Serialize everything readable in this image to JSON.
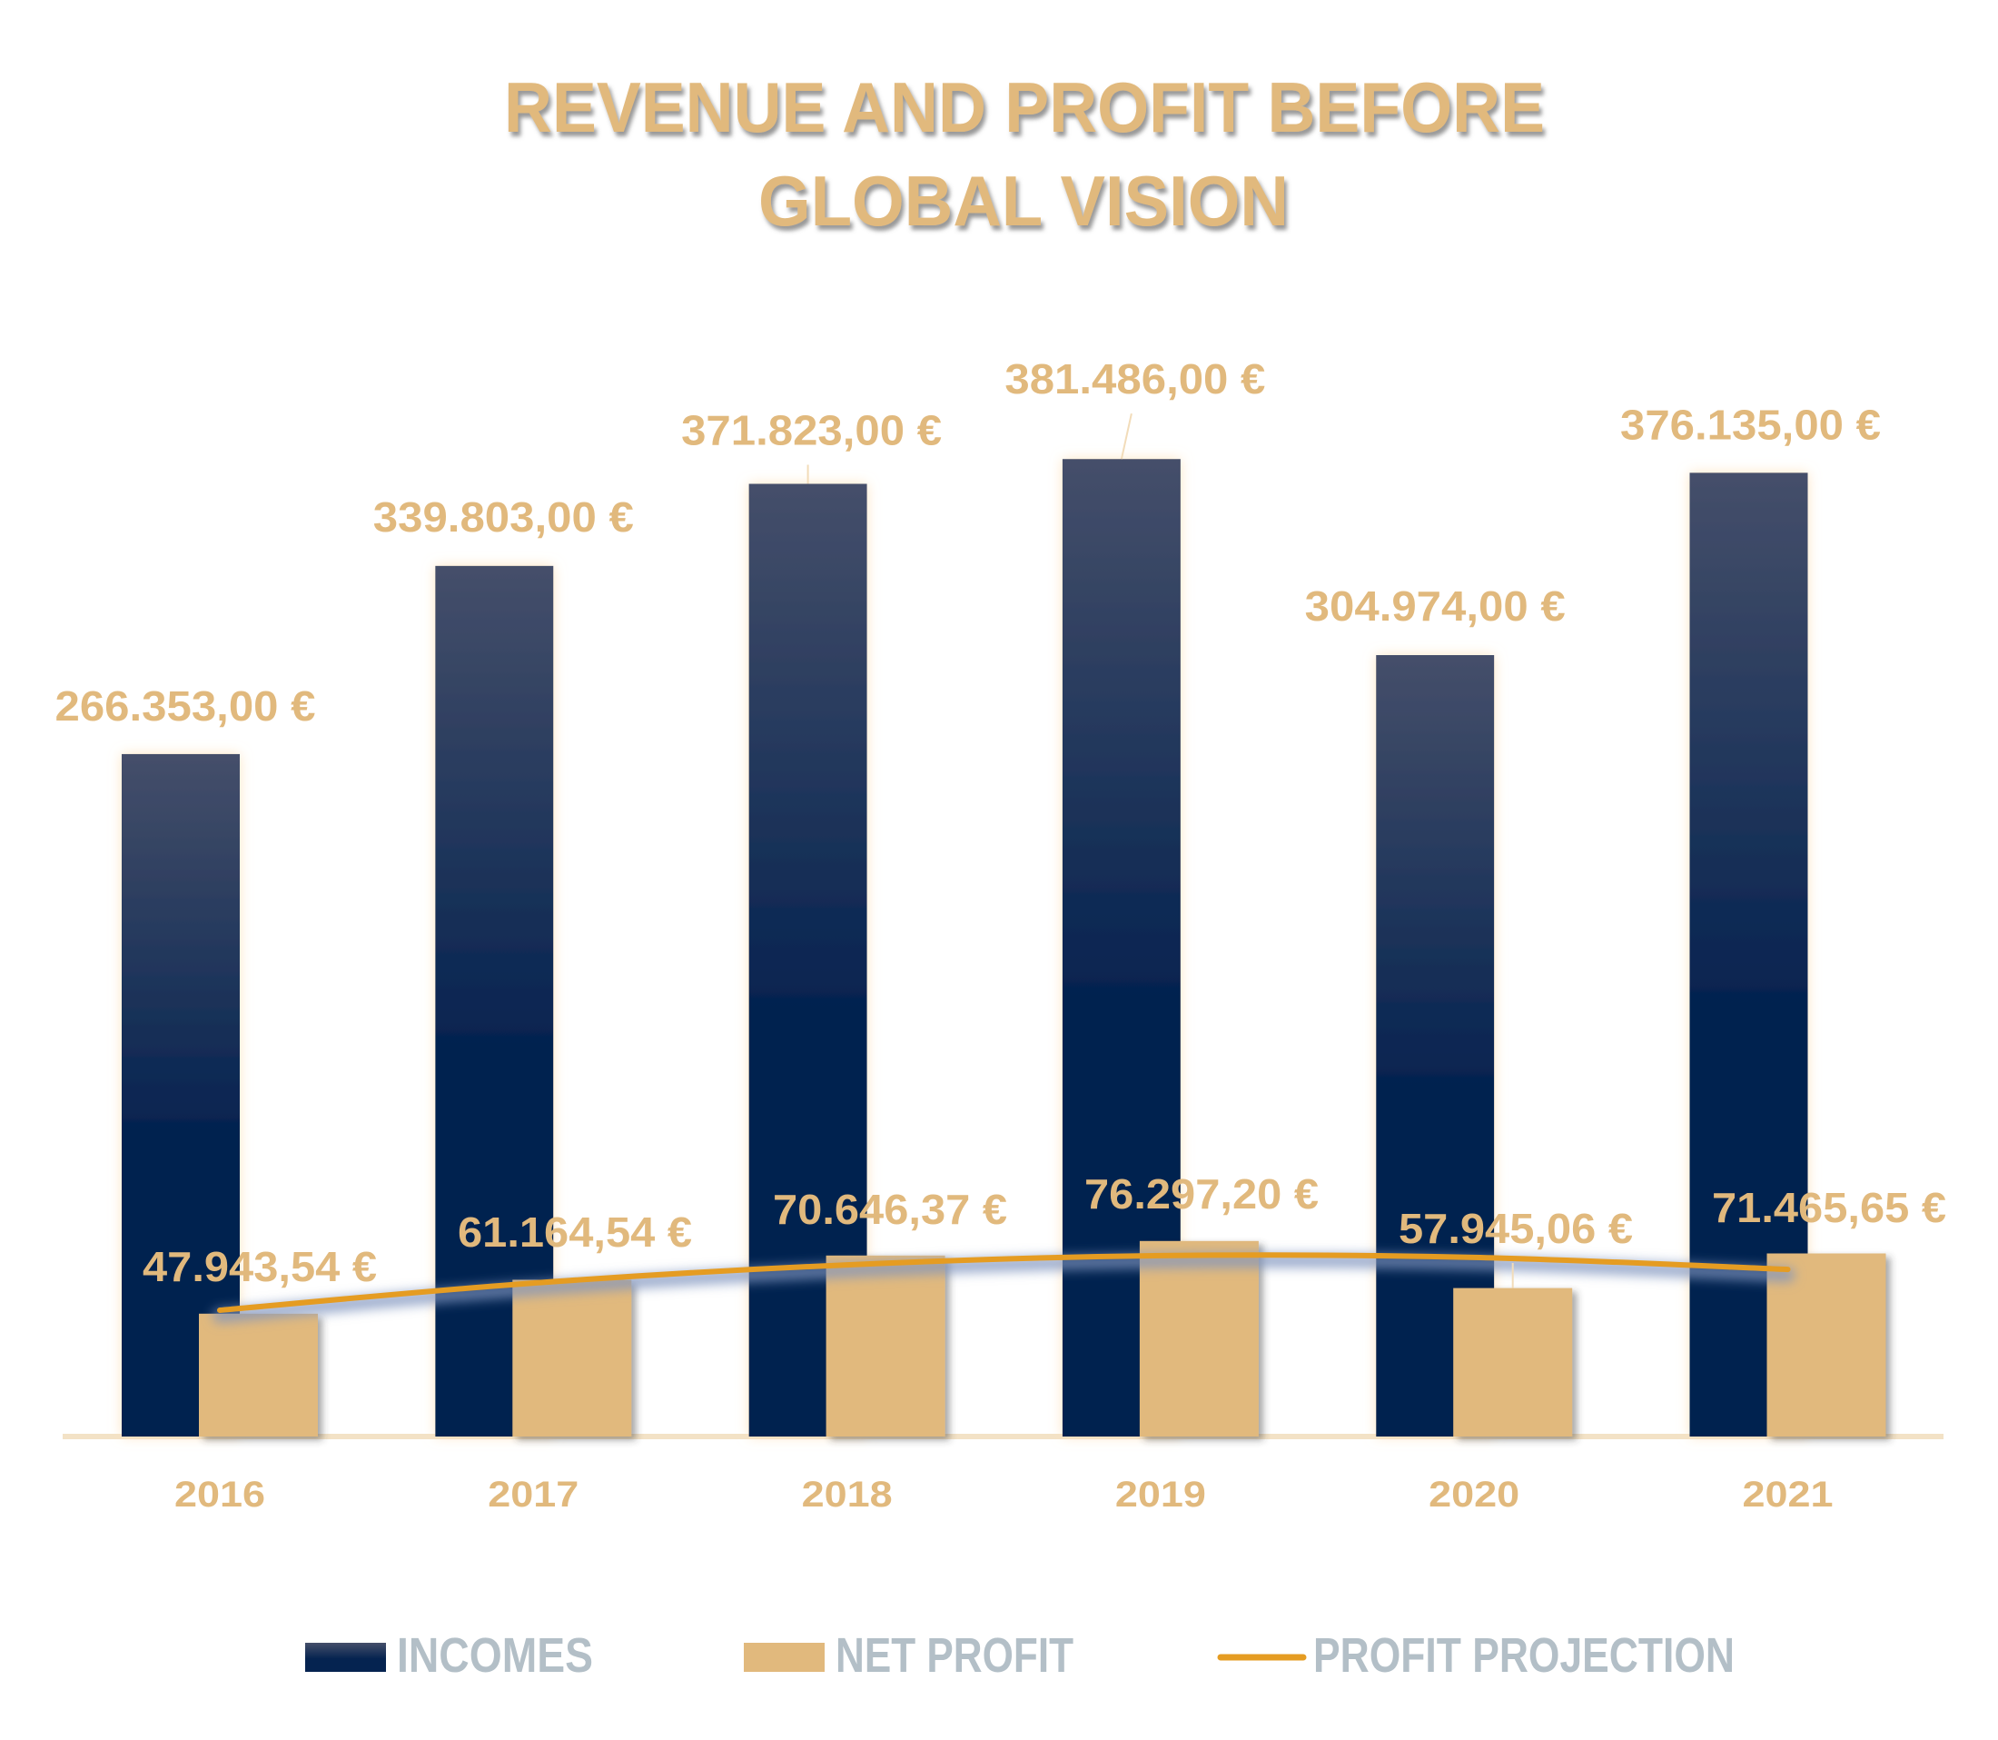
{
  "chart_data": {
    "type": "bar",
    "title_lines": [
      "REVENUE AND PROFIT BEFORE",
      "GLOBAL VISION"
    ],
    "xlabel": "",
    "ylabel": "",
    "ylim": [
      0,
      400000
    ],
    "grid": false,
    "legend_position": "bottom",
    "categories": [
      "2016",
      "2017",
      "2018",
      "2019",
      "2020",
      "2021"
    ],
    "series": [
      {
        "name": "INCOMES",
        "kind": "bar",
        "color": "#052350",
        "color_top": "#454f6a",
        "values": [
          266353.0,
          339803.0,
          371823.0,
          381486.0,
          304974.0,
          376135.0
        ],
        "labels": [
          "266.353,00 €",
          "339.803,00 €",
          "371.823,00 €",
          "381.486,00 €",
          "304.974,00 €",
          "376.135,00 €"
        ]
      },
      {
        "name": "NET PROFIT",
        "kind": "bar",
        "color": "#e1b97d",
        "values": [
          47943.54,
          61164.54,
          70646.37,
          76297.2,
          57945.06,
          71465.65
        ],
        "labels": [
          "47.943,54 €",
          "61.164,54 €",
          "70.646,37 €",
          "76.297,20 €",
          "57.945,06 €",
          "71.465,65 €"
        ]
      },
      {
        "name": "PROFIT PROJECTION",
        "kind": "trendline",
        "color": "#e59c22",
        "values": [
          49300,
          59900,
          67000,
          70600,
          69900,
          65200
        ]
      }
    ]
  }
}
